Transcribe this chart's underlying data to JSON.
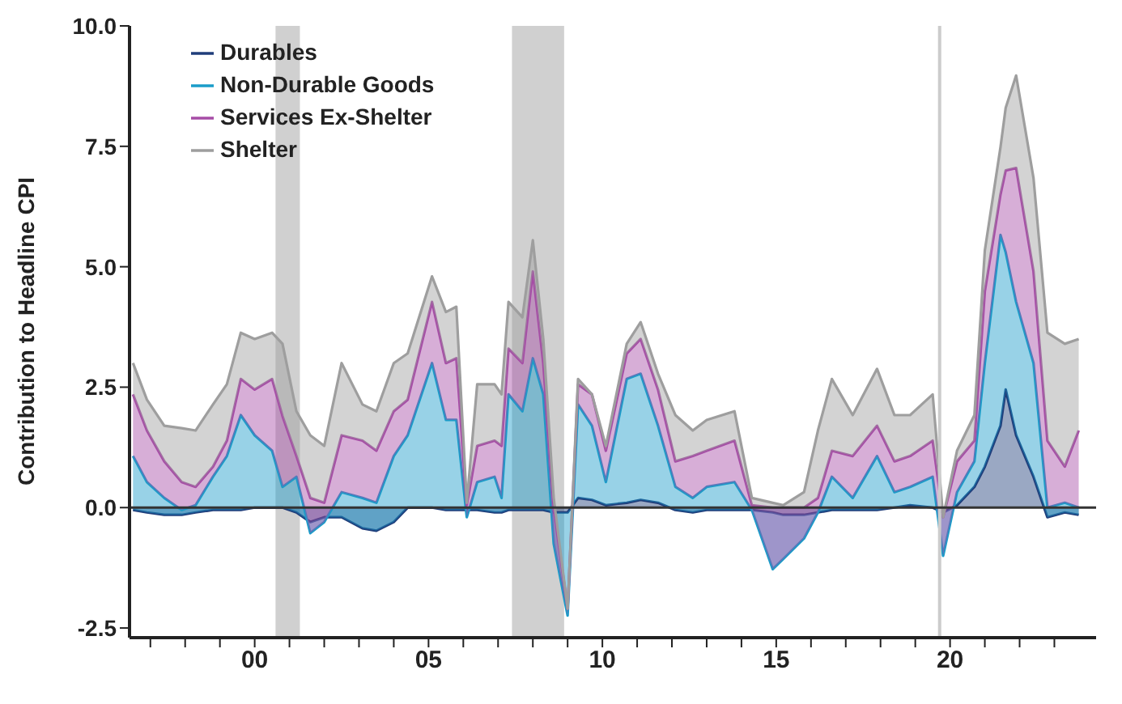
{
  "chart_data": {
    "type": "area",
    "stacked": true,
    "ylabel": "Contribution to Headline CPI",
    "x": [
      1996.5,
      1996.9,
      1997.4,
      1997.9,
      1998.3,
      1998.8,
      1999.2,
      1999.6,
      2000.0,
      2000.5,
      2000.8,
      2001.2,
      2001.6,
      2002.0,
      2002.5,
      2003.1,
      2003.5,
      2004.0,
      2004.4,
      2005.1,
      2005.5,
      2005.8,
      2006.1,
      2006.4,
      2006.9,
      2007.1,
      2007.3,
      2007.7,
      2008.0,
      2008.3,
      2008.6,
      2009.0,
      2009.3,
      2009.7,
      2010.1,
      2010.7,
      2011.1,
      2011.6,
      2012.1,
      2012.6,
      2013.0,
      2013.8,
      2014.3,
      2014.9,
      2015.2,
      2015.8,
      2016.2,
      2016.6,
      2017.2,
      2017.9,
      2018.4,
      2018.85,
      2019.5,
      2019.8,
      2020.2,
      2020.7,
      2021.0,
      2021.45,
      2021.6,
      2021.9,
      2022.4,
      2022.8,
      2023.3,
      2023.7
    ],
    "series": [
      {
        "name": "Durables",
        "color": "#1f3d7a",
        "values": [
          -0.05,
          -0.1,
          -0.15,
          -0.15,
          -0.1,
          -0.05,
          -0.05,
          -0.05,
          0,
          0,
          0,
          -0.1,
          -0.3,
          -0.2,
          -0.2,
          -0.43,
          -0.48,
          -0.3,
          0,
          0,
          -0.05,
          -0.05,
          -0.05,
          -0.05,
          -0.1,
          -0.1,
          -0.05,
          -0.05,
          -0.05,
          -0.05,
          -0.1,
          -0.1,
          0.2,
          0.16,
          0.05,
          0.1,
          0.16,
          0.1,
          -0.05,
          -0.1,
          -0.05,
          -0.05,
          -0.05,
          -0.1,
          -0.15,
          -0.15,
          -0.1,
          -0.05,
          -0.05,
          -0.05,
          0,
          0.05,
          0,
          -0.1,
          0.05,
          0.43,
          0.85,
          1.7,
          2.45,
          1.5,
          0.64,
          -0.2,
          -0.1,
          -0.15
        ]
      },
      {
        "name": "Non-Durable Goods",
        "color": "#1a9cc9",
        "values": [
          1.12,
          0.63,
          0.35,
          0.1,
          0.15,
          0.69,
          1.12,
          1.97,
          1.5,
          1.18,
          0.43,
          0.74,
          -0.23,
          -0.1,
          0.52,
          0.63,
          0.58,
          1.37,
          1.5,
          3.0,
          1.87,
          1.87,
          -0.15,
          0.58,
          0.74,
          0.3,
          2.4,
          2.05,
          3.15,
          2.4,
          -0.65,
          -2.14,
          1.94,
          1.54,
          0.48,
          2.57,
          2.62,
          1.6,
          0.48,
          0.3,
          0.48,
          0.58,
          0,
          -1.18,
          -0.92,
          -0.49,
          0,
          0.69,
          0.25,
          1.12,
          0.32,
          0.38,
          0.64,
          -0.9,
          0.27,
          0.53,
          2.15,
          3.96,
          2.85,
          2.77,
          2.36,
          0.2,
          0.2,
          0.15
        ]
      },
      {
        "name": "Services Ex-Shelter",
        "color": "#a64ca6",
        "values": [
          1.28,
          1.07,
          0.76,
          0.58,
          0.38,
          0.21,
          0.32,
          0.75,
          0.95,
          1.49,
          1.47,
          0.43,
          0.73,
          0.4,
          1.18,
          1.19,
          1.08,
          0.93,
          0.74,
          1.27,
          1.18,
          1.28,
          0.25,
          0.75,
          0.75,
          1.08,
          0.95,
          1.0,
          1.8,
          0.65,
          0.75,
          0.14,
          0.42,
          0.65,
          0.65,
          0.53,
          0.72,
          0.75,
          0.53,
          0.87,
          0.75,
          0.86,
          0.1,
          1.28,
          1.07,
          0.64,
          0.3,
          0.54,
          0.87,
          0.63,
          0.64,
          0.64,
          0.75,
          0.8,
          0.64,
          0.43,
          1.49,
          0.84,
          1.7,
          2.78,
          1.9,
          1.39,
          0.75,
          1.6
        ]
      },
      {
        "name": "Shelter",
        "color": "#9e9e9e",
        "values": [
          0.65,
          0.64,
          0.74,
          1.12,
          1.17,
          1.29,
          1.17,
          0.96,
          1.05,
          0.96,
          1.5,
          0.93,
          1.3,
          1.18,
          1.5,
          0.75,
          0.82,
          1.0,
          0.96,
          0.53,
          1.06,
          1.07,
          0.05,
          1.28,
          1.17,
          1.07,
          0.97,
          0.95,
          0.65,
          0.5,
          0.2,
          0,
          0.11,
          0,
          0.1,
          0.2,
          0.35,
          0.33,
          0.96,
          0.53,
          0.64,
          0.61,
          0.15,
          0.1,
          0.05,
          0.32,
          1.4,
          1.49,
          0.85,
          1.18,
          0.96,
          0.85,
          0.96,
          0,
          0.22,
          0.53,
          0.85,
          0.98,
          1.3,
          1.92,
          1.94,
          2.24,
          2.55,
          1.9
        ]
      }
    ],
    "xlim": [
      1996.4,
      2024.2
    ],
    "xticks": [
      {
        "value": 1997,
        "label": null
      },
      {
        "value": 1998,
        "label": null
      },
      {
        "value": 1999,
        "label": null
      },
      {
        "value": 2000,
        "label": "00"
      },
      {
        "value": 2001,
        "label": null
      },
      {
        "value": 2002,
        "label": null
      },
      {
        "value": 2003,
        "label": null
      },
      {
        "value": 2004,
        "label": null
      },
      {
        "value": 2005,
        "label": "05"
      },
      {
        "value": 2006,
        "label": null
      },
      {
        "value": 2007,
        "label": null
      },
      {
        "value": 2008,
        "label": null
      },
      {
        "value": 2009,
        "label": null
      },
      {
        "value": 2010,
        "label": "10"
      },
      {
        "value": 2011,
        "label": null
      },
      {
        "value": 2012,
        "label": null
      },
      {
        "value": 2013,
        "label": null
      },
      {
        "value": 2014,
        "label": null
      },
      {
        "value": 2015,
        "label": "15"
      },
      {
        "value": 2016,
        "label": null
      },
      {
        "value": 2017,
        "label": null
      },
      {
        "value": 2018,
        "label": null
      },
      {
        "value": 2019,
        "label": null
      },
      {
        "value": 2020,
        "label": "20"
      },
      {
        "value": 2021,
        "label": null
      },
      {
        "value": 2022,
        "label": null
      },
      {
        "value": 2023,
        "label": null
      }
    ],
    "ylim": [
      -2.7,
      10
    ],
    "yticks": [
      {
        "value": -2.5,
        "label": "-2.5"
      },
      {
        "value": 0,
        "label": "0.0"
      },
      {
        "value": 2.5,
        "label": "2.5"
      },
      {
        "value": 5,
        "label": "5.0"
      },
      {
        "value": 7.5,
        "label": "7.5"
      },
      {
        "value": 10,
        "label": "10.0"
      }
    ],
    "bands": [
      {
        "axis": "x",
        "from": 2000.6,
        "to": 2001.3,
        "color": "#d0d0d0"
      },
      {
        "axis": "x",
        "from": 2007.4,
        "to": 2008.9,
        "color": "#d0d0d0"
      }
    ],
    "ref_lines": [
      {
        "axis": "y",
        "value": 0,
        "color": "#333333"
      },
      {
        "axis": "x",
        "value": 2019.7,
        "color": "#cccccc"
      }
    ],
    "grid": false,
    "legend": "top left"
  }
}
